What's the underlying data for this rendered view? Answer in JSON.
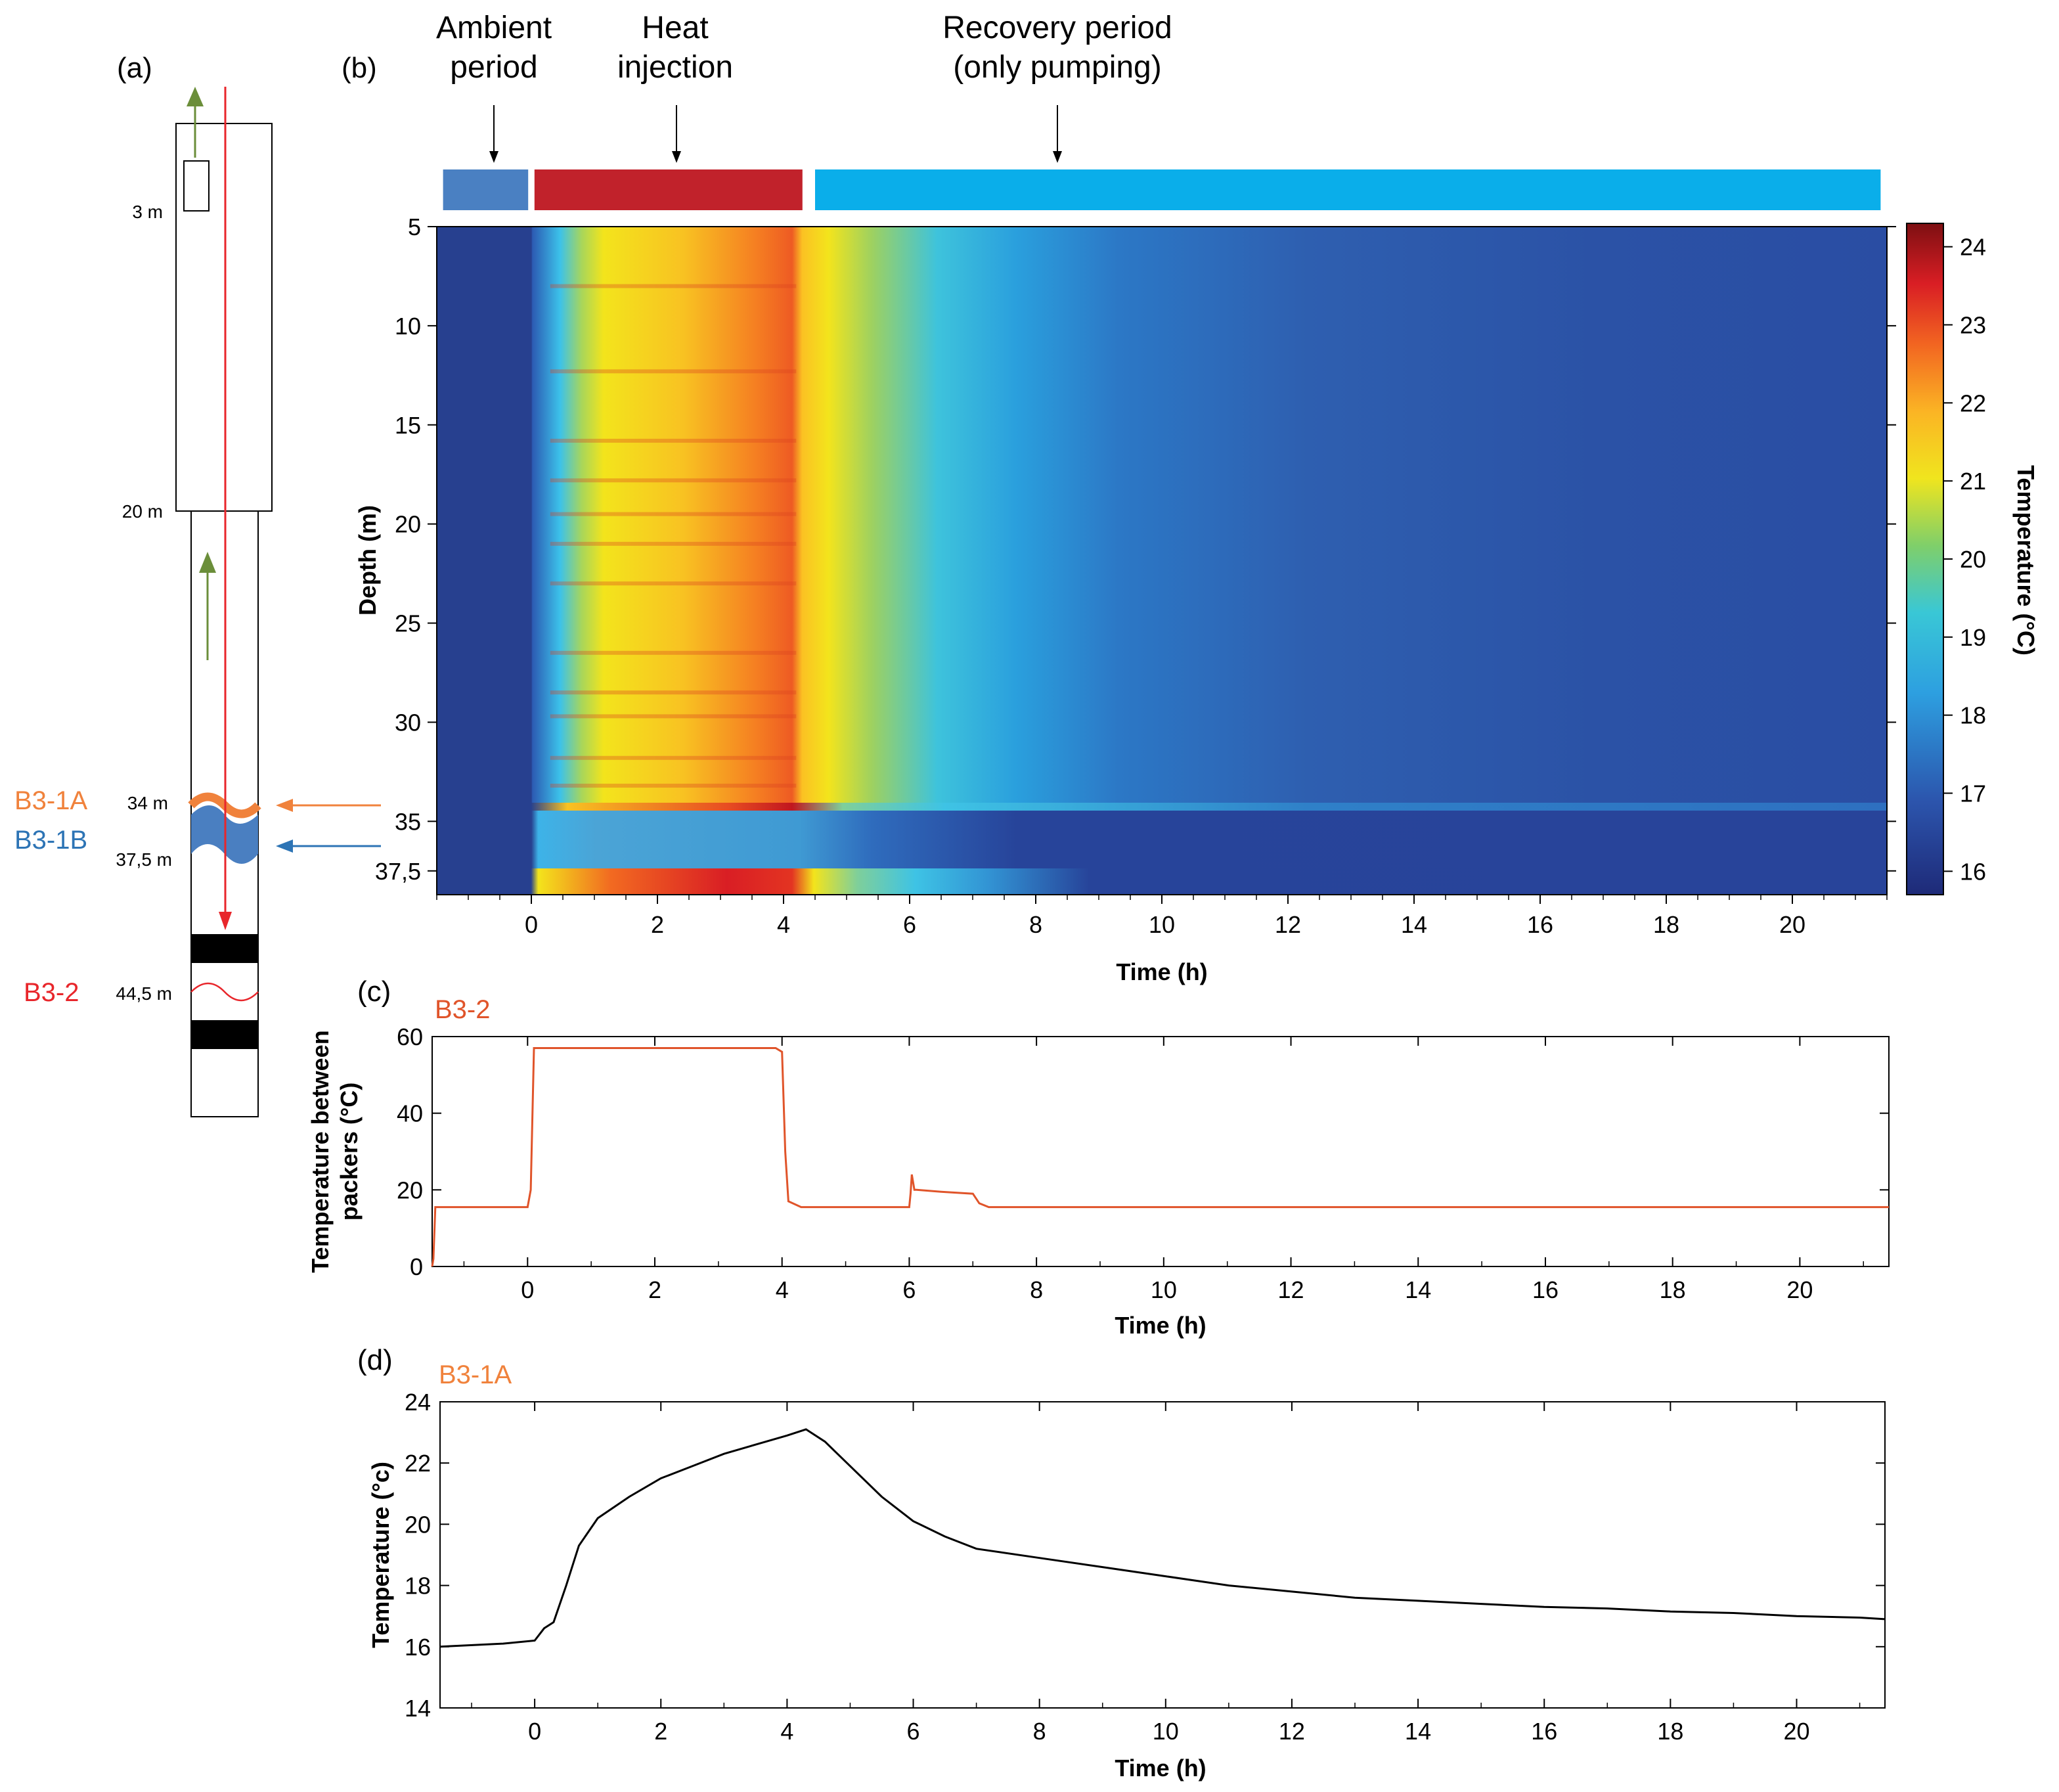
{
  "panels": {
    "a": "(a)",
    "b": "(b)",
    "c": "(c)",
    "d": "(d)"
  },
  "schematic": {
    "depths": [
      "3 m",
      "20 m",
      "34 m",
      "37,5 m",
      "44,5 m"
    ],
    "zones": [
      {
        "name": "B3-1A",
        "color": "#f0823c"
      },
      {
        "name": "B3-1B",
        "color": "#2d74b5"
      },
      {
        "name": "B3-2",
        "color": "#e8262b"
      }
    ],
    "arrow_colors": {
      "flow": "#6b8e3a",
      "probe": "#e8262b"
    }
  },
  "periods": [
    {
      "label_lines": [
        "Ambient",
        "period"
      ],
      "start_h": -1.4,
      "end_h": -0.05,
      "color": "#4a80c2"
    },
    {
      "label_lines": [
        "Heat",
        "injection"
      ],
      "start_h": 0.05,
      "end_h": 4.3,
      "color": "#c1222b"
    },
    {
      "label_lines": [
        "Recovery period",
        "(only pumping)"
      ],
      "start_h": 4.5,
      "end_h": 21.4,
      "color": "#0aaeea"
    }
  ],
  "chart_data": [
    {
      "id": "b",
      "type": "heatmap",
      "xlabel": "Time (h)",
      "ylabel": "Depth (m)",
      "xlim": [
        -1.5,
        21.5
      ],
      "ylim": [
        5,
        38.7
      ],
      "xticks": [
        0,
        2,
        4,
        6,
        8,
        10,
        12,
        14,
        16,
        18,
        20
      ],
      "yticks": [
        5,
        10,
        15,
        20,
        25,
        30,
        35,
        37.5
      ],
      "ytick_labels": [
        "5",
        "10",
        "15",
        "20",
        "25",
        "30",
        "35",
        "37,5"
      ],
      "colorbar": {
        "label": "Temperature (°C)",
        "range": [
          15.7,
          24.3
        ],
        "ticks": [
          16,
          17,
          18,
          19,
          20,
          21,
          22,
          23,
          24
        ],
        "colormap": "jet"
      }
    },
    {
      "id": "c",
      "type": "line",
      "series_label": "B3-2",
      "series_color": "#e0542a",
      "xlabel": "Time (h)",
      "ylabel_lines": [
        "Temperature between",
        "packers (°C)"
      ],
      "xlim": [
        -1.5,
        21.4
      ],
      "ylim": [
        0,
        60
      ],
      "xticks": [
        0,
        2,
        4,
        6,
        8,
        10,
        12,
        14,
        16,
        18,
        20
      ],
      "yticks": [
        0,
        20,
        40,
        60
      ],
      "x": [
        -1.5,
        -1.48,
        -1.45,
        0.0,
        0.05,
        0.1,
        0.2,
        2.0,
        3.9,
        4.0,
        4.05,
        4.1,
        4.3,
        5.0,
        6.0,
        6.02,
        6.04,
        6.08,
        6.12,
        6.5,
        7.0,
        7.1,
        7.25,
        8.0,
        12.0,
        16.0,
        21.4
      ],
      "y": [
        0,
        2,
        15.5,
        15.5,
        20,
        57,
        57,
        57,
        57,
        56,
        30,
        17,
        15.5,
        15.5,
        15.5,
        19,
        24,
        20,
        20,
        19.5,
        19,
        16.5,
        15.5,
        15.5,
        15.5,
        15.5,
        15.5
      ]
    },
    {
      "id": "d",
      "type": "line",
      "series_label": "B3-1A",
      "series_color": "#000000",
      "xlabel": "Time (h)",
      "ylabel": "Temperature (°c)",
      "xlim": [
        -1.5,
        21.4
      ],
      "ylim": [
        14,
        24
      ],
      "xticks": [
        0,
        2,
        4,
        6,
        8,
        10,
        12,
        14,
        16,
        18,
        20
      ],
      "yticks": [
        14,
        16,
        18,
        20,
        22,
        24
      ],
      "x": [
        -1.5,
        -0.5,
        0.0,
        0.15,
        0.3,
        0.5,
        0.7,
        1.0,
        1.5,
        2.0,
        2.5,
        3.0,
        3.5,
        4.0,
        4.3,
        4.6,
        5.0,
        5.5,
        6.0,
        6.5,
        7.0,
        8.0,
        9.0,
        10.0,
        11.0,
        12.0,
        13.0,
        14.0,
        15.0,
        16.0,
        17.0,
        18.0,
        19.0,
        20.0,
        21.0,
        21.4
      ],
      "y": [
        16.0,
        16.1,
        16.2,
        16.6,
        16.8,
        18.0,
        19.3,
        20.2,
        20.9,
        21.5,
        21.9,
        22.3,
        22.6,
        22.9,
        23.1,
        22.7,
        21.9,
        20.9,
        20.1,
        19.6,
        19.2,
        18.9,
        18.6,
        18.3,
        18.0,
        17.8,
        17.6,
        17.5,
        17.4,
        17.3,
        17.25,
        17.15,
        17.1,
        17.0,
        16.95,
        16.9
      ]
    }
  ]
}
